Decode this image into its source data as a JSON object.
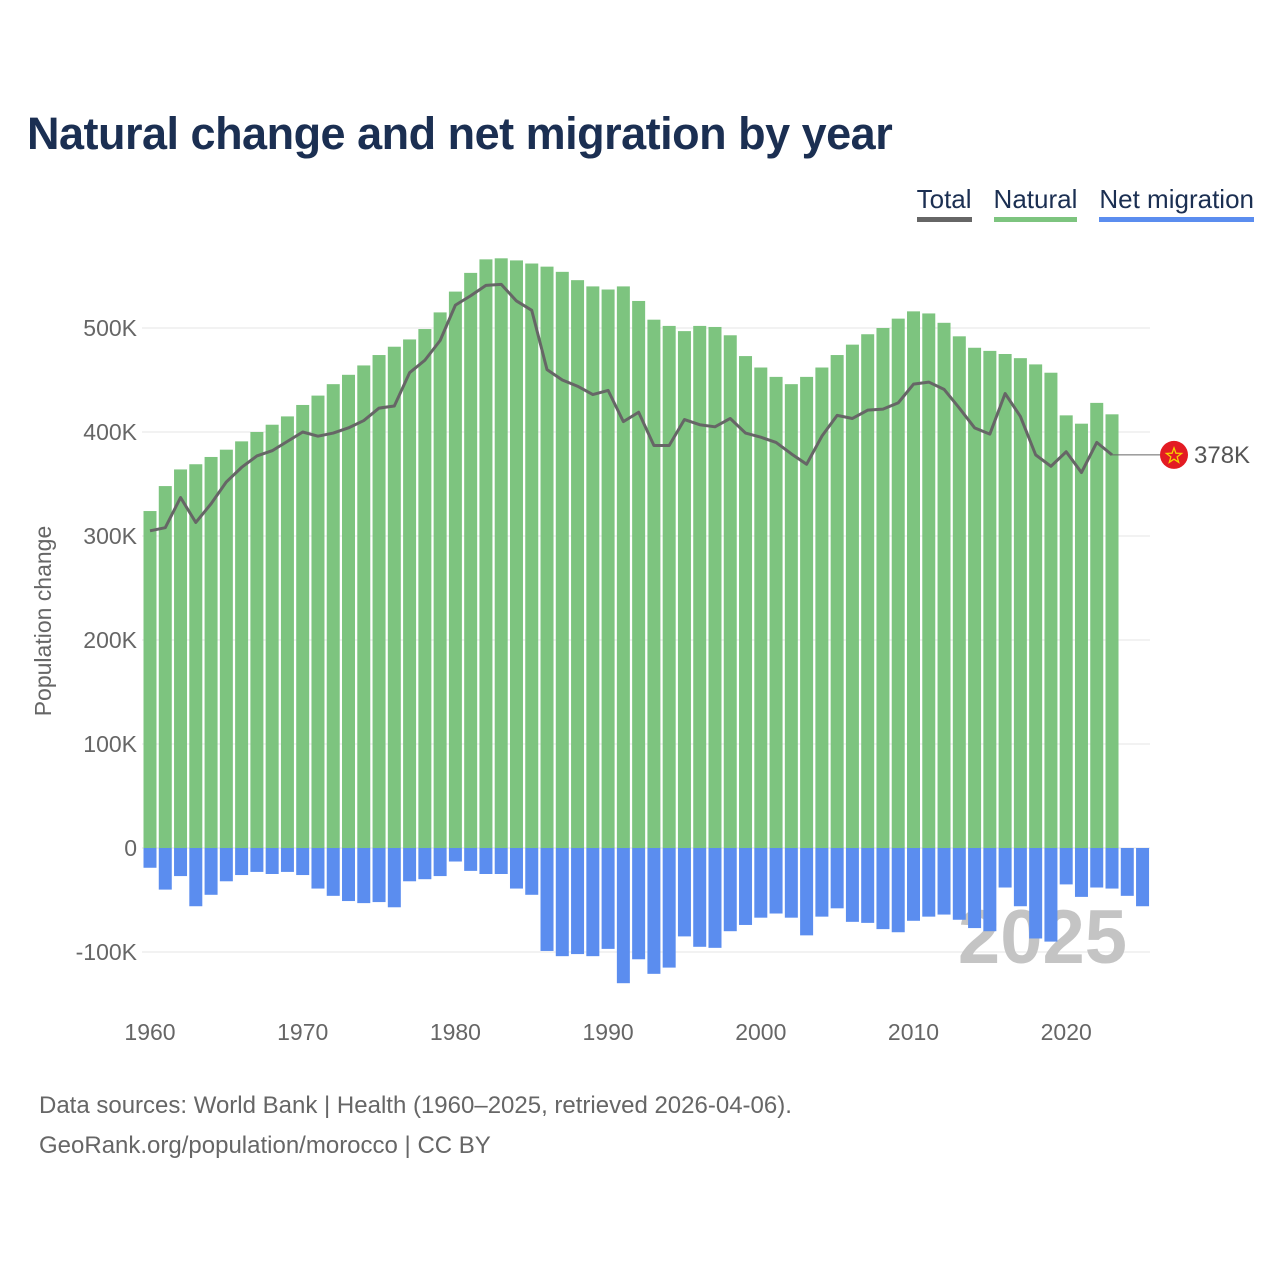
{
  "page": {
    "title": "Natural change and net migration by year",
    "legend": {
      "total": "Total",
      "natural": "Natural",
      "migration": "Net migration"
    },
    "footer": {
      "line1": "Data sources: World Bank | Health (1960–2025, retrieved 2026-04-06).",
      "line2": "GeoRank.org/population/morocco | CC BY"
    }
  },
  "colors": {
    "natural": "#7dc47f",
    "migration": "#5b8def",
    "total": "#666666",
    "title": "#1b2f52",
    "flag": "#e31b23",
    "star": "#f5d300"
  },
  "chart_data": {
    "type": "bar",
    "title": "Natural change and net migration by year",
    "ylabel": "Population change",
    "xlabel": "",
    "ylim": [
      -150000,
      600000
    ],
    "yticks": [
      -100000,
      0,
      100000,
      200000,
      300000,
      400000,
      500000
    ],
    "ytick_labels": [
      "-100K",
      "0",
      "100K",
      "200K",
      "300K",
      "400K",
      "500K"
    ],
    "xlim": [
      1960,
      2025
    ],
    "xticks": [
      1960,
      1970,
      1980,
      1990,
      2000,
      2010,
      2020
    ],
    "xtick_labels": [
      "1960",
      "1970",
      "1980",
      "1990",
      "2000",
      "2010",
      "2020"
    ],
    "watermark_year": "2025",
    "end_label": "378K",
    "end_year": 2023,
    "end_value": 378000,
    "years": [
      1960,
      1961,
      1962,
      1963,
      1964,
      1965,
      1966,
      1967,
      1968,
      1969,
      1970,
      1971,
      1972,
      1973,
      1974,
      1975,
      1976,
      1977,
      1978,
      1979,
      1980,
      1981,
      1982,
      1983,
      1984,
      1985,
      1986,
      1987,
      1988,
      1989,
      1990,
      1991,
      1992,
      1993,
      1994,
      1995,
      1996,
      1997,
      1998,
      1999,
      2000,
      2001,
      2002,
      2003,
      2004,
      2005,
      2006,
      2007,
      2008,
      2009,
      2010,
      2011,
      2012,
      2013,
      2014,
      2015,
      2016,
      2017,
      2018,
      2019,
      2020,
      2021,
      2022,
      2023,
      2024,
      2025
    ],
    "series": [
      {
        "name": "Natural",
        "values": [
          324000,
          348000,
          364000,
          369000,
          376000,
          383000,
          391000,
          400000,
          407000,
          415000,
          426000,
          435000,
          446000,
          455000,
          464000,
          474000,
          482000,
          489000,
          499000,
          515000,
          535000,
          553000,
          566000,
          567000,
          565000,
          562000,
          559000,
          554000,
          546000,
          540000,
          537000,
          540000,
          526000,
          508000,
          502000,
          497000,
          502000,
          501000,
          493000,
          473000,
          462000,
          453000,
          446000,
          453000,
          462000,
          474000,
          484000,
          494000,
          500000,
          509000,
          516000,
          514000,
          505000,
          492000,
          481000,
          478000,
          475000,
          471000,
          465000,
          457000,
          416000,
          408000,
          428000,
          417000,
          0,
          0
        ]
      },
      {
        "name": "Net migration",
        "values": [
          -19000,
          -40000,
          -27000,
          -56000,
          -45000,
          -32000,
          -26000,
          -23000,
          -25000,
          -23000,
          -26000,
          -39000,
          -46000,
          -51000,
          -53000,
          -52000,
          -57000,
          -32000,
          -30000,
          -27000,
          -13000,
          -22000,
          -25000,
          -25000,
          -39000,
          -45000,
          -99000,
          -104000,
          -102000,
          -104000,
          -97000,
          -130000,
          -107000,
          -121000,
          -115000,
          -85000,
          -95000,
          -96000,
          -80000,
          -74000,
          -67000,
          -63000,
          -67000,
          -84000,
          -66000,
          -58000,
          -71000,
          -72000,
          -78000,
          -81000,
          -70000,
          -66000,
          -64000,
          -69000,
          -77000,
          -80000,
          -38000,
          -56000,
          -87000,
          -90000,
          -35000,
          -47000,
          -38000,
          -39000,
          -46000,
          -56000
        ]
      },
      {
        "name": "Total",
        "values": [
          305000,
          308000,
          337000,
          313000,
          331000,
          352000,
          366000,
          377000,
          382000,
          391000,
          400000,
          396000,
          399000,
          404000,
          411000,
          423000,
          425000,
          457000,
          469000,
          488000,
          522000,
          531000,
          541000,
          542000,
          526000,
          517000,
          460000,
          450000,
          444000,
          436000,
          440000,
          410000,
          419000,
          387000,
          387000,
          412000,
          407000,
          405000,
          413000,
          399000,
          395000,
          390000,
          379000,
          369000,
          396000,
          416000,
          413000,
          421000,
          422000,
          428000,
          446000,
          448000,
          441000,
          423000,
          404000,
          398000,
          437000,
          415000,
          378000,
          367000,
          381000,
          361000,
          390000,
          378000,
          null,
          null
        ]
      }
    ]
  }
}
